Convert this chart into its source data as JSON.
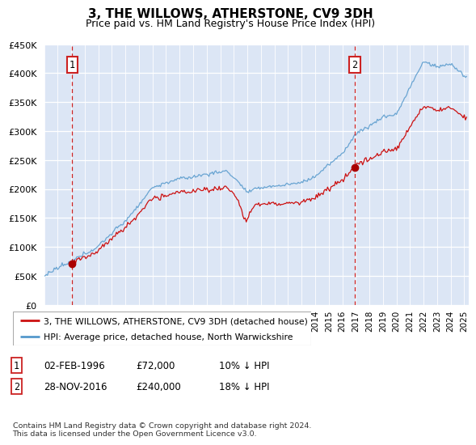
{
  "title": "3, THE WILLOWS, ATHERSTONE, CV9 3DH",
  "subtitle": "Price paid vs. HM Land Registry's House Price Index (HPI)",
  "ylim": [
    0,
    450000
  ],
  "yticks": [
    0,
    50000,
    100000,
    150000,
    200000,
    250000,
    300000,
    350000,
    400000,
    450000
  ],
  "xlim_start": 1994.0,
  "xlim_end": 2025.3,
  "bg_color": "#dce6f5",
  "grid_color": "#ffffff",
  "sale1_date": 1996.08,
  "sale1_price": 72000,
  "sale2_date": 2016.91,
  "sale2_price": 240000,
  "legend_line1": "3, THE WILLOWS, ATHERSTONE, CV9 3DH (detached house)",
  "legend_line2": "HPI: Average price, detached house, North Warwickshire",
  "footer": "Contains HM Land Registry data © Crown copyright and database right 2024.\nThis data is licensed under the Open Government Licence v3.0.",
  "line_red": "#cc1111",
  "line_blue": "#5599cc",
  "marker_red": "#aa0000"
}
